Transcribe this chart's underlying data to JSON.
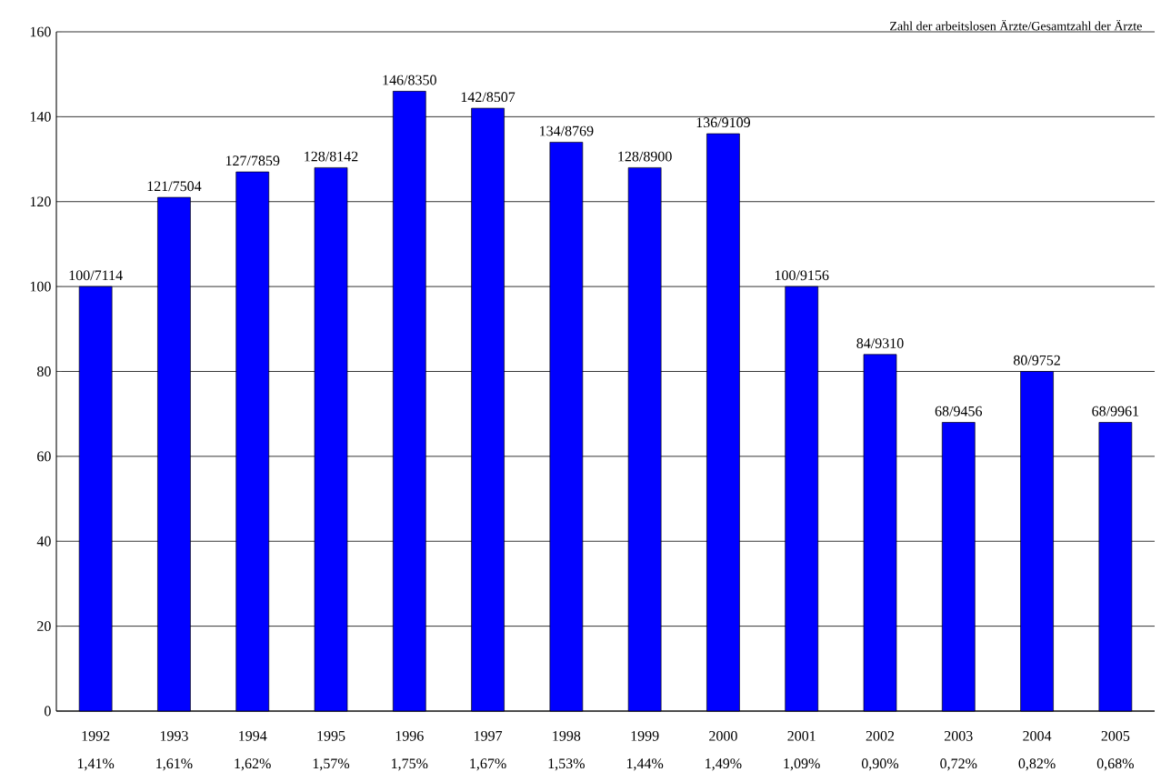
{
  "chart_data": {
    "type": "bar",
    "title": "Zahl der arbeitslosen Ärzte/Gesamtzahl der Ärzte",
    "categories": [
      "1992",
      "1993",
      "1994",
      "1995",
      "1996",
      "1997",
      "1998",
      "1999",
      "2000",
      "2001",
      "2002",
      "2003",
      "2004",
      "2005"
    ],
    "values": [
      100,
      121,
      127,
      128,
      146,
      142,
      134,
      128,
      136,
      100,
      84,
      68,
      80,
      68
    ],
    "value_labels": [
      "100/7114",
      "121/7504",
      "127/7859",
      "128/8142",
      "146/8350",
      "142/8507",
      "134/8769",
      "128/8900",
      "136/9109",
      "100/9156",
      "84/9310",
      "68/9456",
      "80/9752",
      "68/9961"
    ],
    "annotations": [
      "1,41%",
      "1,61%",
      "1,62%",
      "1,57%",
      "1,75%",
      "1,67%",
      "1,53%",
      "1,44%",
      "1,49%",
      "1,09%",
      "0,90%",
      "0,72%",
      "0,82%",
      "0,68%"
    ],
    "color": "#0000ff",
    "ylim": [
      0,
      160
    ],
    "yticks": [
      0,
      20,
      40,
      60,
      80,
      100,
      120,
      140,
      160
    ],
    "grid": "y"
  }
}
